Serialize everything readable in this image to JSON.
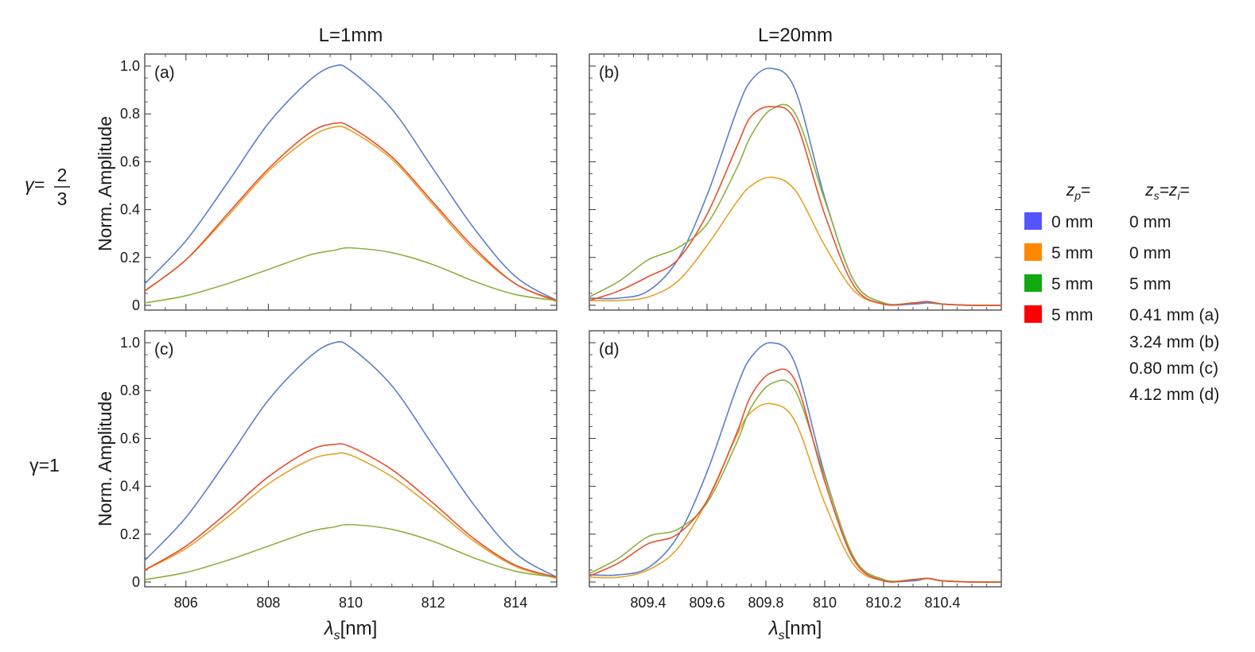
{
  "colors": {
    "zp0_zs0": "#5A7FC8",
    "zp5_zs0": "#E5A22A",
    "zp5_zs5": "#8EB040",
    "zp5_zsopt": "#E5502F",
    "legend_blue": "#5555FF",
    "legend_orange": "#FF8800",
    "legend_green": "#11AA11",
    "legend_red": "#FF0000"
  },
  "columns": {
    "left_title": "L=1mm",
    "right_title": "L=20mm"
  },
  "rows": {
    "top_gamma_prefix": "γ=",
    "top_gamma_num": "2",
    "top_gamma_den": "3",
    "bottom_gamma": "γ=1"
  },
  "axes": {
    "ylabel": "Norm. Amplitude",
    "xlabel_main": "λ",
    "xlabel_sub": "s",
    "xlabel_unit": "[nm]"
  },
  "legend": {
    "header_zp_main": "z",
    "header_zp_sub": "p",
    "header_zp_eq": "=",
    "header_zs_main1": "z",
    "header_zs_sub1": "s",
    "header_zs_mid": "=z",
    "header_zs_sub2": "i",
    "header_zs_eq": "=",
    "rows": [
      {
        "zp": "0 mm",
        "zs": "0 mm"
      },
      {
        "zp": "5 mm",
        "zs": "0 mm"
      },
      {
        "zp": "5 mm",
        "zs": "5 mm"
      },
      {
        "zp": "5 mm",
        "zs": "0.41 mm (a)"
      }
    ],
    "extra": [
      "3.24 mm (b)",
      "0.80 mm (c)",
      "4.12 mm (d)"
    ]
  },
  "chart_data": [
    {
      "panel": "a",
      "label": "(a)",
      "type": "line",
      "xlim": [
        805,
        815
      ],
      "ylim": [
        -0.02,
        1.05
      ],
      "xticks": [
        806,
        808,
        810,
        812,
        814
      ],
      "xticklabels": [
        "806",
        "808",
        "810",
        "812",
        "814"
      ],
      "show_xticklabels": false,
      "yticks": [
        0,
        0.2,
        0.4,
        0.6,
        0.8,
        1.0
      ],
      "yticklabels": [
        "0",
        "0.2",
        "0.4",
        "0.6",
        "0.8",
        "1.0"
      ],
      "show_yticklabels": true,
      "x": [
        805,
        806,
        807,
        808,
        809,
        809.6,
        810,
        811,
        812,
        813,
        814,
        815
      ],
      "series": [
        {
          "name": "zp=0 mm, zs=zi=0 mm",
          "color": "zp0_zs0",
          "values": [
            0.09,
            0.27,
            0.51,
            0.76,
            0.94,
            1.0,
            0.98,
            0.82,
            0.57,
            0.32,
            0.12,
            0.02
          ]
        },
        {
          "name": "zp=5 mm, zs=zi=0 mm",
          "color": "zp5_zs0",
          "values": [
            0.06,
            0.19,
            0.37,
            0.56,
            0.7,
            0.745,
            0.73,
            0.61,
            0.42,
            0.23,
            0.09,
            0.015
          ]
        },
        {
          "name": "zp=5 mm, zs=zi=5 mm",
          "color": "zp5_zs5",
          "values": [
            0.01,
            0.04,
            0.09,
            0.15,
            0.21,
            0.23,
            0.24,
            0.22,
            0.17,
            0.1,
            0.045,
            0.02
          ]
        },
        {
          "name": "zp=5 mm, zs=zi=0.41 mm",
          "color": "zp5_zsopt",
          "values": [
            0.06,
            0.19,
            0.38,
            0.57,
            0.72,
            0.76,
            0.745,
            0.62,
            0.43,
            0.24,
            0.09,
            0.02
          ]
        }
      ]
    },
    {
      "panel": "b",
      "label": "(b)",
      "type": "line",
      "xlim": [
        809.2,
        810.6
      ],
      "ylim": [
        -0.02,
        1.05
      ],
      "xticks": [
        809.4,
        809.6,
        809.8,
        810,
        810.2,
        810.4
      ],
      "xticklabels": [
        "809.4",
        "809.6",
        "809.8",
        "810",
        "810.2",
        "810.4"
      ],
      "show_xticklabels": false,
      "yticks": [
        0,
        0.2,
        0.4,
        0.6,
        0.8,
        1.0
      ],
      "yticklabels": [
        "0",
        "0.2",
        "0.4",
        "0.6",
        "0.8",
        "1.0"
      ],
      "show_yticklabels": false,
      "x": [
        809.2,
        809.3,
        809.4,
        809.5,
        809.6,
        809.7,
        809.75,
        809.82,
        809.9,
        810.0,
        810.1,
        810.2,
        810.3,
        810.35,
        810.4,
        810.5,
        810.6
      ],
      "series": [
        {
          "name": "zp=0 mm, zs=zi=0 mm",
          "color": "zp0_zs0",
          "values": [
            0.03,
            0.03,
            0.06,
            0.19,
            0.46,
            0.81,
            0.94,
            0.99,
            0.9,
            0.45,
            0.1,
            0.01,
            0.005,
            0.01,
            0.005,
            0.0,
            0.0
          ]
        },
        {
          "name": "zp=5 mm, zs=zi=0 mm",
          "color": "zp5_zs0",
          "values": [
            0.02,
            0.02,
            0.035,
            0.1,
            0.25,
            0.43,
            0.5,
            0.535,
            0.48,
            0.25,
            0.06,
            0.005,
            0.01,
            0.015,
            0.005,
            0.0,
            0.0
          ]
        },
        {
          "name": "zp=5 mm, zs=zi=5 mm",
          "color": "zp5_zs5",
          "values": [
            0.035,
            0.1,
            0.19,
            0.24,
            0.34,
            0.57,
            0.71,
            0.82,
            0.8,
            0.44,
            0.1,
            0.01,
            0.01,
            0.015,
            0.005,
            0.0,
            0.0
          ]
        },
        {
          "name": "zp=5 mm, zs=zi=3.24 mm",
          "color": "zp5_zsopt",
          "values": [
            0.02,
            0.06,
            0.12,
            0.19,
            0.38,
            0.66,
            0.79,
            0.83,
            0.77,
            0.38,
            0.08,
            0.005,
            0.01,
            0.015,
            0.005,
            0.0,
            0.0
          ]
        }
      ]
    },
    {
      "panel": "c",
      "label": "(c)",
      "type": "line",
      "xlim": [
        805,
        815
      ],
      "ylim": [
        -0.02,
        1.05
      ],
      "xticks": [
        806,
        808,
        810,
        812,
        814
      ],
      "xticklabels": [
        "806",
        "808",
        "810",
        "812",
        "814"
      ],
      "show_xticklabels": true,
      "yticks": [
        0,
        0.2,
        0.4,
        0.6,
        0.8,
        1.0
      ],
      "yticklabels": [
        "0",
        "0.2",
        "0.4",
        "0.6",
        "0.8",
        "1.0"
      ],
      "show_yticklabels": true,
      "x": [
        805,
        806,
        807,
        808,
        809,
        809.6,
        810,
        811,
        812,
        813,
        814,
        815
      ],
      "series": [
        {
          "name": "zp=0 mm, zs=zi=0 mm",
          "color": "zp0_zs0",
          "values": [
            0.09,
            0.27,
            0.51,
            0.76,
            0.94,
            1.0,
            0.98,
            0.82,
            0.57,
            0.32,
            0.12,
            0.02
          ]
        },
        {
          "name": "zp=5 mm, zs=zi=0 mm",
          "color": "zp5_zs0",
          "values": [
            0.05,
            0.14,
            0.27,
            0.41,
            0.51,
            0.535,
            0.53,
            0.44,
            0.31,
            0.17,
            0.065,
            0.015
          ]
        },
        {
          "name": "zp=5 mm, zs=zi=5 mm",
          "color": "zp5_zs5",
          "values": [
            0.01,
            0.04,
            0.09,
            0.15,
            0.21,
            0.23,
            0.24,
            0.22,
            0.17,
            0.1,
            0.045,
            0.02
          ]
        },
        {
          "name": "zp=5 mm, zs=zi=0.80 mm",
          "color": "zp5_zsopt",
          "values": [
            0.05,
            0.15,
            0.29,
            0.44,
            0.55,
            0.575,
            0.565,
            0.47,
            0.33,
            0.18,
            0.07,
            0.02
          ]
        }
      ]
    },
    {
      "panel": "d",
      "label": "(d)",
      "type": "line",
      "xlim": [
        809.2,
        810.6
      ],
      "ylim": [
        -0.02,
        1.05
      ],
      "xticks": [
        809.4,
        809.6,
        809.8,
        810,
        810.2,
        810.4
      ],
      "xticklabels": [
        "809.4",
        "809.6",
        "809.8",
        "810",
        "810.2",
        "810.4"
      ],
      "show_xticklabels": true,
      "yticks": [
        0,
        0.2,
        0.4,
        0.6,
        0.8,
        1.0
      ],
      "yticklabels": [
        "0",
        "0.2",
        "0.4",
        "0.6",
        "0.8",
        "1.0"
      ],
      "show_yticklabels": false,
      "x": [
        809.2,
        809.3,
        809.4,
        809.5,
        809.6,
        809.7,
        809.75,
        809.82,
        809.9,
        810.0,
        810.1,
        810.2,
        810.3,
        810.35,
        810.4,
        810.5,
        810.6
      ],
      "series": [
        {
          "name": "zp=0 mm, zs=zi=0 mm",
          "color": "zp0_zs0",
          "values": [
            0.03,
            0.03,
            0.06,
            0.19,
            0.46,
            0.81,
            0.94,
            1.0,
            0.91,
            0.45,
            0.1,
            0.01,
            0.005,
            0.015,
            0.005,
            0.0,
            0.0
          ]
        },
        {
          "name": "zp=5 mm, zs=zi=0 mm",
          "color": "zp5_zs0",
          "values": [
            0.02,
            0.02,
            0.05,
            0.14,
            0.34,
            0.61,
            0.71,
            0.745,
            0.67,
            0.33,
            0.07,
            0.005,
            0.01,
            0.015,
            0.005,
            0.0,
            0.0
          ]
        },
        {
          "name": "zp=5 mm, zs=zi=5 mm",
          "color": "zp5_zs5",
          "values": [
            0.035,
            0.1,
            0.19,
            0.22,
            0.33,
            0.58,
            0.73,
            0.83,
            0.8,
            0.44,
            0.1,
            0.01,
            0.01,
            0.015,
            0.005,
            0.0,
            0.0
          ]
        },
        {
          "name": "zp=5 mm, zs=zi=4.12 mm",
          "color": "zp5_zsopt",
          "values": [
            0.025,
            0.08,
            0.16,
            0.2,
            0.34,
            0.62,
            0.78,
            0.875,
            0.84,
            0.42,
            0.09,
            0.005,
            0.01,
            0.015,
            0.005,
            0.0,
            0.0
          ]
        }
      ]
    }
  ]
}
